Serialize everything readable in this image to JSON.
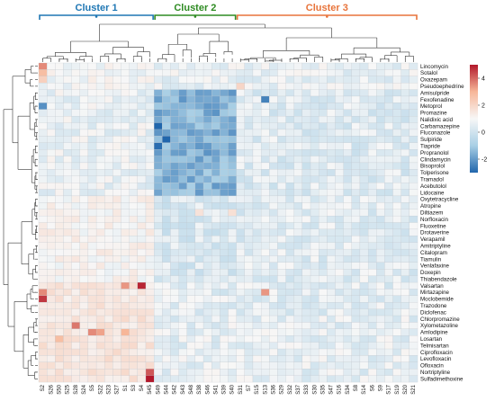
{
  "chart_data": {
    "type": "heatmap",
    "title": "",
    "xlabel": "",
    "ylabel": "",
    "clusters": [
      {
        "label": "Cluster 1",
        "color": "#1f77b4",
        "first": "S2",
        "last": "S45"
      },
      {
        "label": "Cluster 2",
        "color": "#2e8b22",
        "first": "S49",
        "last": "S40"
      },
      {
        "label": "Cluster 3",
        "color": "#e8743b",
        "first": "S31",
        "last": "S21"
      }
    ],
    "columns": [
      "S2",
      "S26",
      "S50",
      "S25",
      "S28",
      "S24",
      "S5",
      "S22",
      "S23",
      "S27",
      "S1",
      "S3",
      "S4",
      "S45",
      "S49",
      "S44",
      "S42",
      "S43",
      "S48",
      "S38",
      "S46",
      "S41",
      "S39",
      "S40",
      "S31",
      "S7",
      "S15",
      "S13",
      "S36",
      "S29",
      "S32",
      "S37",
      "S33",
      "S30",
      "S35",
      "S47",
      "S16",
      "S34",
      "S8",
      "S14",
      "S6",
      "S9",
      "S17",
      "S19",
      "S20",
      "S21"
    ],
    "rows": [
      "Lincomycin",
      "Sotalol",
      "Oxazepam",
      "Pseudoephedrine",
      "Amisulpride",
      "Fexofenadine",
      "Metoprol",
      "Promazine",
      "Nalidixic acid",
      "Carbamazepine",
      "Fluconazole",
      "Sulpiride",
      "Tiapride",
      "Propranolol",
      "Clindamycin",
      "Bisoprolol",
      "Tolperisone",
      "Tramadol",
      "Acebutolol",
      "Lidocaine",
      "Oxytetracycline",
      "Atropine",
      "Diltiazem",
      "Norfloxacin",
      "Fluoxetine",
      "Drotaverine",
      "Verapamil",
      "Amitriptyline",
      "Citalopram",
      "Tiamulin",
      "Venlafaxine",
      "Doxepin",
      "Thiabendazole",
      "Valsartan",
      "Mirtazapine",
      "Moclobemide",
      "Trazodone",
      "Diclofenac",
      "Chlorpromazine",
      "Xylometazoline",
      "Amlodipine",
      "Losartan",
      "Telmisartan",
      "Ciprofloxacin",
      "Levofloxacin",
      "Ofloxacin",
      "Nortriptyline",
      "Sulfadimethoxine"
    ],
    "row_groups": [
      {
        "rows": [
          "Lincomycin",
          "Sotalol",
          "Oxazepam",
          "Pseudoephedrine"
        ],
        "level": [
          0.0,
          -0.2,
          -0.25
        ]
      },
      {
        "rows": [
          "Amisulpride",
          "Fexofenadine",
          "Metoprol",
          "Promazine",
          "Nalidixic acid",
          "Carbamazepine",
          "Fluconazole",
          "Sulpiride",
          "Tiapride",
          "Propranolol",
          "Clindamycin",
          "Bisoprolol",
          "Tolperisone",
          "Tramadol",
          "Acebutolol",
          "Lidocaine"
        ],
        "level": [
          -0.2,
          -1.9,
          -0.45
        ]
      },
      {
        "rows": [
          "Oxytetracycline",
          "Atropine",
          "Diltiazem",
          "Norfloxacin",
          "Fluoxetine",
          "Drotaverine",
          "Verapamil",
          "Amitriptyline",
          "Citalopram",
          "Tiamulin",
          "Venlafaxine",
          "Doxepin",
          "Thiabendazole"
        ],
        "level": [
          0.2,
          -0.55,
          -0.4
        ]
      },
      {
        "rows": [
          "Valsartan",
          "Mirtazapine",
          "Moclobemide",
          "Trazodone",
          "Diclofenac"
        ],
        "level": [
          0.6,
          -0.35,
          -0.35
        ]
      },
      {
        "rows": [
          "Chlorpromazine",
          "Xylometazoline",
          "Amlodipine",
          "Losartan",
          "Telmisartan",
          "Ciprofloxacin",
          "Levofloxacin",
          "Ofloxacin",
          "Nortriptyline",
          "Sulfadimethoxine"
        ],
        "level": [
          0.7,
          -0.3,
          -0.3
        ]
      }
    ],
    "highlights": [
      {
        "row": "Lincomycin",
        "col": "S2",
        "value": 3.2
      },
      {
        "row": "Sotalol",
        "col": "S2",
        "value": 2.2
      },
      {
        "row": "Oxazepam",
        "col": "S2",
        "value": 1.5
      },
      {
        "row": "Pseudoephedrine",
        "col": "S31",
        "value": 1.3
      },
      {
        "row": "Valsartan",
        "col": "S4",
        "value": 4.8
      },
      {
        "row": "Valsartan",
        "col": "S1",
        "value": 3.0
      },
      {
        "row": "Mirtazapine",
        "col": "S2",
        "value": 3.2
      },
      {
        "row": "Moclobemide",
        "col": "S2",
        "value": 4.5
      },
      {
        "row": "Mirtazapine",
        "col": "S13",
        "value": 3.0
      },
      {
        "row": "Xylometazoline",
        "col": "S28",
        "value": 3.5
      },
      {
        "row": "Amlodipine",
        "col": "S5",
        "value": 3.2
      },
      {
        "row": "Amlodipine",
        "col": "S22",
        "value": 2.8
      },
      {
        "row": "Amlodipine",
        "col": "S1",
        "value": 2.5
      },
      {
        "row": "Losartan",
        "col": "S50",
        "value": 2.2
      },
      {
        "row": "Nortriptyline",
        "col": "S45",
        "value": 4.0
      },
      {
        "row": "Sulfadimethoxine",
        "col": "S45",
        "value": 5.0
      },
      {
        "row": "Diltiazem",
        "col": "S40",
        "value": 0.9
      },
      {
        "row": "Diltiazem",
        "col": "S38",
        "value": 0.8
      },
      {
        "row": "Carbamazepine",
        "col": "S49",
        "value": -3.0
      },
      {
        "row": "Sulpiride",
        "col": "S44",
        "value": -3.0
      },
      {
        "row": "Tiapride",
        "col": "S49",
        "value": -2.9
      },
      {
        "row": "Fexofenadine",
        "col": "S13",
        "value": -2.6
      },
      {
        "row": "Metoprol",
        "col": "S2",
        "value": -2.4
      }
    ],
    "legend": {
      "ticks": [
        "4",
        "2",
        "0",
        "-2"
      ],
      "min": -3.0,
      "max": 5.0,
      "colors": [
        "#2166ac",
        "#a9cfe5",
        "#f7f7f7",
        "#f7b698",
        "#b2182b"
      ]
    }
  }
}
